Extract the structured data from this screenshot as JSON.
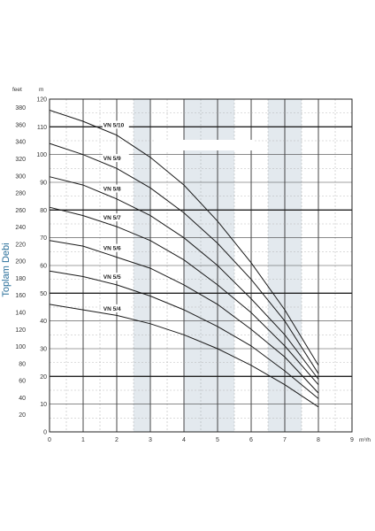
{
  "chart_data": {
    "type": "line",
    "title": "",
    "xlabel": "m³/h",
    "ylabel": "Toplam Debi",
    "ylabel_left_unit": "feet",
    "ylabel_right_unit": "m",
    "xlim": [
      0,
      9
    ],
    "ylim_m": [
      0,
      120
    ],
    "ylim_feet": [
      0,
      390
    ],
    "x_ticks": [
      "0",
      "1",
      "2",
      "3",
      "4",
      "5",
      "6",
      "7",
      "8",
      "9"
    ],
    "y_ticks_m": [
      "0",
      "10",
      "20",
      "30",
      "40",
      "50",
      "60",
      "70",
      "80",
      "90",
      "100",
      "110",
      "120"
    ],
    "y_ticks_feet": [
      "20",
      "40",
      "60",
      "80",
      "100",
      "120",
      "140",
      "160",
      "180",
      "200",
      "220",
      "240",
      "260",
      "280",
      "300",
      "320",
      "340",
      "360",
      "380"
    ],
    "shaded_bands": [
      [
        2.5,
        3.0
      ],
      [
        4.0,
        5.5
      ],
      [
        6.5,
        7.5
      ]
    ],
    "grid": true,
    "legend": "inline-labels",
    "series": [
      {
        "name": "VN 5/10",
        "x": [
          0,
          1,
          2,
          3,
          4,
          5,
          6,
          7,
          8
        ],
        "y": [
          116,
          112,
          107,
          99,
          89,
          76,
          61,
          44,
          24
        ]
      },
      {
        "name": "VN 5/9",
        "x": [
          0,
          1,
          2,
          3,
          4,
          5,
          6,
          7,
          8
        ],
        "y": [
          104,
          100,
          95,
          88,
          79,
          68,
          55,
          40,
          21
        ]
      },
      {
        "name": "VN 5/8",
        "x": [
          0,
          1,
          2,
          3,
          4,
          5,
          6,
          7,
          8
        ],
        "y": [
          92,
          89,
          84,
          78,
          70,
          60,
          48,
          35,
          19
        ]
      },
      {
        "name": "VN 5/7",
        "x": [
          0,
          1,
          2,
          3,
          4,
          5,
          6,
          7,
          8
        ],
        "y": [
          81,
          78,
          74,
          69,
          62,
          53,
          43,
          31,
          17
        ]
      },
      {
        "name": "VN 5/6",
        "x": [
          0,
          1,
          2,
          3,
          4,
          5,
          6,
          7,
          8
        ],
        "y": [
          69,
          67,
          63,
          59,
          53,
          46,
          37,
          27,
          14
        ]
      },
      {
        "name": "VN 5/5",
        "x": [
          0,
          1,
          2,
          3,
          4,
          5,
          6,
          7,
          8
        ],
        "y": [
          58,
          56,
          53,
          49,
          44,
          38,
          31,
          22,
          12
        ]
      },
      {
        "name": "VN 5/4",
        "x": [
          0,
          1,
          2,
          3,
          4,
          5,
          6,
          7,
          8
        ],
        "y": [
          46,
          44,
          42,
          39,
          35,
          30,
          24,
          17,
          9
        ]
      }
    ],
    "label_x": [
      1.6,
      1.6,
      1.6,
      1.6,
      1.6,
      1.6,
      1.6
    ]
  }
}
